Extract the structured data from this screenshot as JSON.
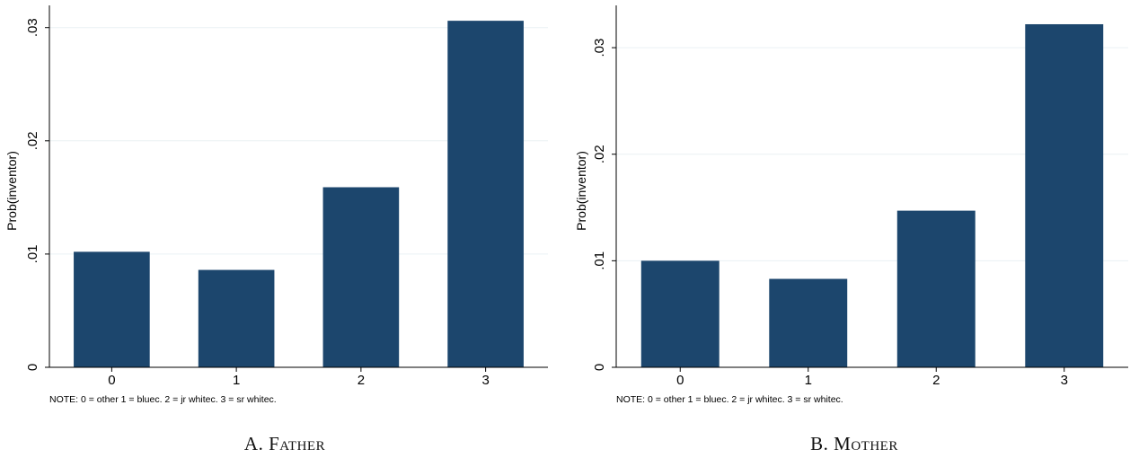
{
  "colors": {
    "bar": "#1c466d",
    "grid": "#eaf0f4",
    "axis": "#000000"
  },
  "panels": [
    {
      "caption_prefix": "A.",
      "caption_name": "Father",
      "chart_data": {
        "type": "bar",
        "categories": [
          "0",
          "1",
          "2",
          "3"
        ],
        "values": [
          0.0102,
          0.0086,
          0.0159,
          0.0306
        ],
        "ylabel": "Prob(inventor)",
        "yticks": [
          0,
          0.01,
          0.02,
          0.03
        ],
        "ytick_labels": [
          "0",
          ".01",
          ".02",
          ".03"
        ],
        "ylim": [
          0,
          0.0318
        ],
        "grid": true,
        "note": "NOTE: 0 = other 1 = bluec. 2 = jr whitec. 3 = sr whitec."
      }
    },
    {
      "caption_prefix": "B.",
      "caption_name": "Mother",
      "chart_data": {
        "type": "bar",
        "categories": [
          "0",
          "1",
          "2",
          "3"
        ],
        "values": [
          0.01,
          0.0083,
          0.0147,
          0.0322
        ],
        "ylabel": "Prob(inventor)",
        "yticks": [
          0,
          0.01,
          0.02,
          0.03
        ],
        "ytick_labels": [
          "0",
          ".01",
          ".02",
          ".03"
        ],
        "ylim": [
          0,
          0.0338
        ],
        "grid": true,
        "note": "NOTE: 0 = other 1 = bluec. 2 = jr whitec. 3 = sr whitec."
      }
    }
  ]
}
